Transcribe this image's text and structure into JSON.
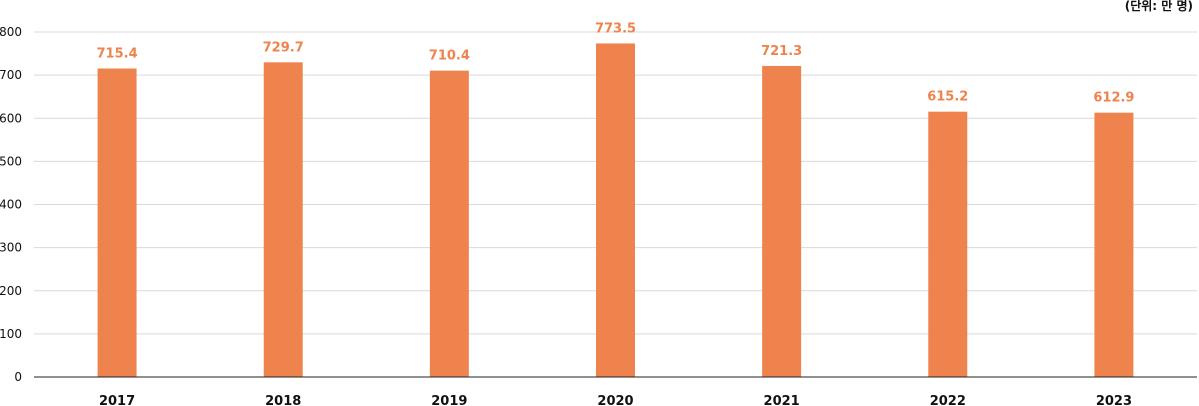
{
  "chart_data": {
    "type": "bar",
    "unit_label": "(단위: 만 명)",
    "categories": [
      "2017",
      "2018",
      "2019",
      "2020",
      "2021",
      "2022",
      "2023"
    ],
    "values": [
      715.4,
      729.7,
      710.4,
      773.5,
      721.3,
      615.2,
      612.9
    ],
    "data_labels": [
      "715.4",
      "729.7",
      "710.4",
      "773.5",
      "721.3",
      "615.2",
      "612.9"
    ],
    "ylim": [
      0,
      800
    ],
    "yticks": [
      0,
      100,
      200,
      300,
      400,
      500,
      600,
      700,
      800
    ],
    "grid": true,
    "legend": "none",
    "colors": {
      "bar": "#ef834d",
      "data_label": "#ef834d",
      "grid": "#d9d9d9",
      "axis": "#222222"
    }
  }
}
